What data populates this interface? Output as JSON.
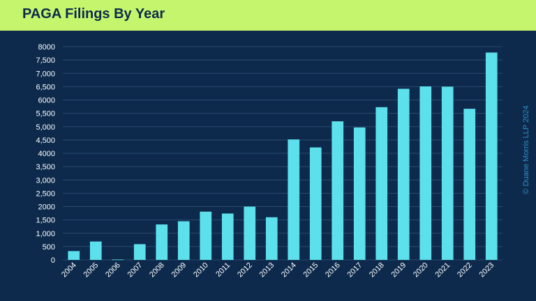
{
  "title": "PAGA Filings By Year",
  "watermark": "© Duane Morris LLP 2024",
  "colors": {
    "background": "#0d2a4c",
    "header": "#c5f56c",
    "title": "#0d2a4c",
    "bar": "#5ce1ec",
    "grid": "#2c4a6e",
    "tick_text": "#ffffff",
    "watermark": "#2f8fc6"
  },
  "chart_data": {
    "type": "bar",
    "title": "PAGA Filings By Year",
    "xlabel": "",
    "ylabel": "",
    "categories": [
      "2004",
      "2005",
      "2006",
      "2007",
      "2008",
      "2009",
      "2010",
      "2011",
      "2012",
      "2013",
      "2014",
      "2015",
      "2016",
      "2017",
      "2018",
      "2019",
      "2020",
      "2021",
      "2022",
      "2023"
    ],
    "values": [
      330,
      690,
      15,
      590,
      1330,
      1450,
      1810,
      1740,
      2000,
      1600,
      4520,
      4220,
      5200,
      4970,
      5730,
      6420,
      6510,
      6500,
      5670,
      7780
    ],
    "ylim": [
      0,
      8000
    ],
    "y_ticks": [
      0,
      500,
      1000,
      1500,
      2000,
      2500,
      3000,
      3500,
      4000,
      4500,
      5000,
      5500,
      6000,
      6500,
      7000,
      7500,
      8000
    ],
    "y_tick_labels": [
      "0",
      "500",
      "1,000",
      "1,500",
      "2000",
      "2,500",
      "3,000",
      "3,500",
      "4000",
      "4,500",
      "5,000",
      "5,500",
      "6000",
      "6,500",
      "7,000",
      "7,500",
      "8000"
    ],
    "grid": true,
    "legend": "none"
  }
}
